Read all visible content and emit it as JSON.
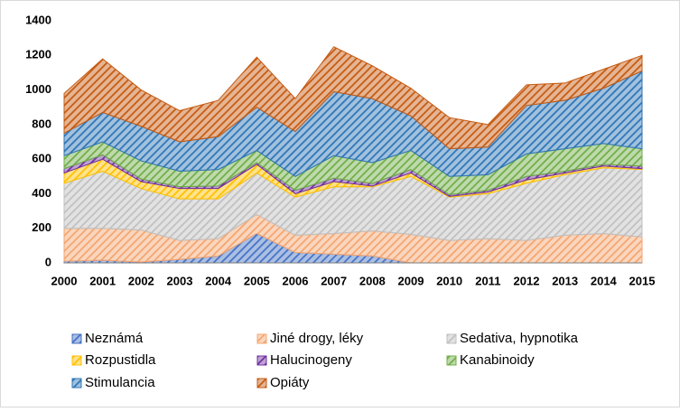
{
  "chart_data": {
    "type": "stacked-area",
    "categories": [
      "2000",
      "2001",
      "2002",
      "2003",
      "2004",
      "2005",
      "2006",
      "2007",
      "2008",
      "2009",
      "2010",
      "2011",
      "2012",
      "2013",
      "2014",
      "2015"
    ],
    "series": [
      {
        "name": "Neznámá",
        "color": "#4472c4",
        "values": [
          10,
          15,
          5,
          20,
          40,
          170,
          60,
          50,
          40,
          0,
          0,
          0,
          0,
          0,
          0,
          0
        ]
      },
      {
        "name": "Jiné drogy, léky",
        "color": "#f4a56f",
        "values": [
          190,
          185,
          185,
          110,
          100,
          110,
          100,
          120,
          145,
          165,
          130,
          140,
          130,
          160,
          170,
          150
        ]
      },
      {
        "name": "Sedativa, hypnotika",
        "color": "#c0c0c0",
        "values": [
          260,
          330,
          240,
          240,
          230,
          240,
          220,
          270,
          255,
          335,
          250,
          260,
          330,
          350,
          380,
          390
        ]
      },
      {
        "name": "Rozpustidla",
        "color": "#ffc000",
        "values": [
          60,
          70,
          40,
          60,
          60,
          50,
          20,
          30,
          5,
          20,
          5,
          10,
          20,
          10,
          10,
          5
        ]
      },
      {
        "name": "Halucinogeny",
        "color": "#7030a0",
        "values": [
          25,
          25,
          15,
          10,
          15,
          10,
          20,
          20,
          15,
          20,
          10,
          10,
          20,
          10,
          10,
          15
        ]
      },
      {
        "name": "Kanabinoidy",
        "color": "#70ad47",
        "values": [
          75,
          75,
          105,
          90,
          95,
          70,
          80,
          130,
          120,
          110,
          105,
          90,
          130,
          130,
          120,
          100
        ]
      },
      {
        "name": "Stimulancia",
        "color": "#2e75b6",
        "values": [
          130,
          170,
          200,
          170,
          190,
          250,
          260,
          370,
          370,
          200,
          160,
          160,
          280,
          280,
          320,
          450
        ]
      },
      {
        "name": "Opiáty",
        "color": "#c55a11",
        "values": [
          230,
          310,
          210,
          180,
          210,
          290,
          190,
          260,
          190,
          160,
          180,
          130,
          120,
          100,
          110,
          90
        ]
      }
    ],
    "ylim": [
      0,
      1400
    ],
    "yticks": [
      0,
      200,
      400,
      600,
      800,
      1000,
      1200,
      1400
    ],
    "grid": false,
    "legend": "bottom"
  }
}
